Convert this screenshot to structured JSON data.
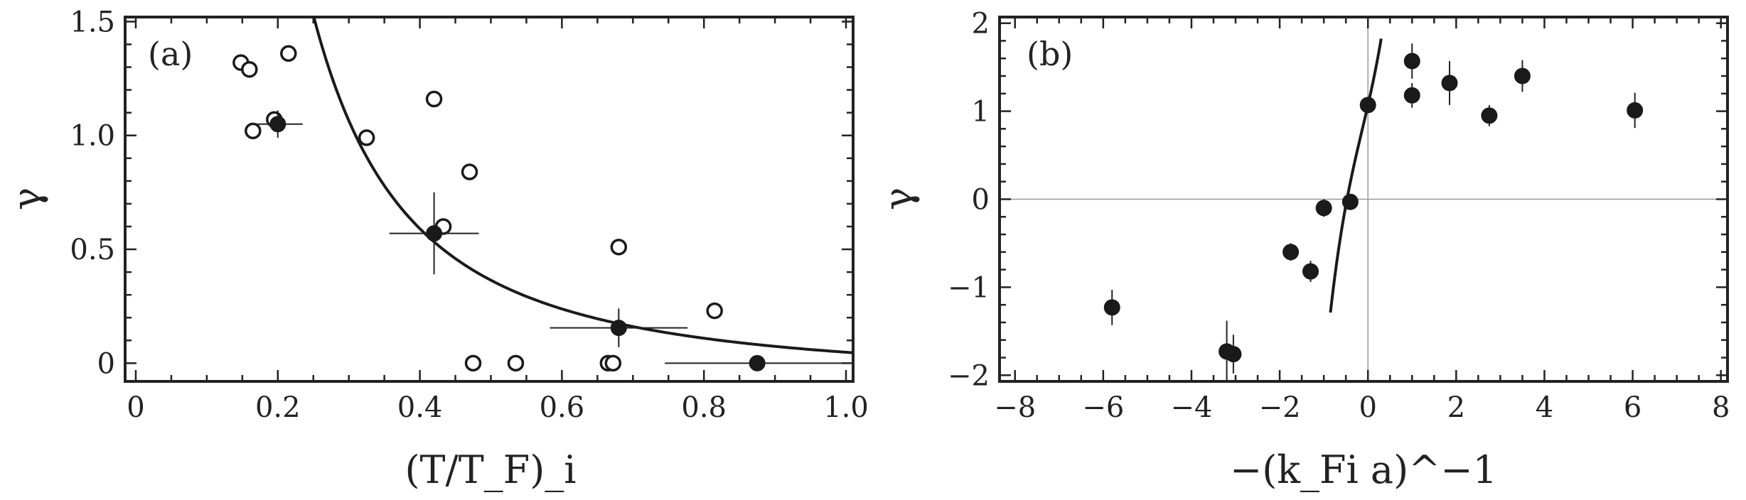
{
  "chart_data": [
    {
      "type": "scatter",
      "panel_label": "(a)",
      "xlabel": "(T/T_F)_i",
      "ylabel": "γ",
      "xlim": [
        -0.015,
        1.01
      ],
      "ylim": [
        -0.08,
        1.52
      ],
      "xticks": [
        0,
        0.2,
        0.4,
        0.6,
        0.8,
        1.0
      ],
      "xtick_labels": [
        "0",
        "0.2",
        "0.4",
        "0.6",
        "0.8",
        "1.0"
      ],
      "yticks": [
        0,
        0.5,
        1.0,
        1.5
      ],
      "ytick_labels": [
        "0",
        "0.5",
        "1.0",
        "1.5"
      ],
      "grid": false,
      "series": [
        {
          "marker": "open-circle",
          "points": [
            {
              "x": 0.148,
              "y": 1.32
            },
            {
              "x": 0.16,
              "y": 1.29
            },
            {
              "x": 0.215,
              "y": 1.36
            },
            {
              "x": 0.165,
              "y": 1.02
            },
            {
              "x": 0.195,
              "y": 1.07
            },
            {
              "x": 0.325,
              "y": 0.99
            },
            {
              "x": 0.42,
              "y": 1.16
            },
            {
              "x": 0.47,
              "y": 0.84
            },
            {
              "x": 0.433,
              "y": 0.6
            },
            {
              "x": 0.68,
              "y": 0.51
            },
            {
              "x": 0.815,
              "y": 0.23
            },
            {
              "x": 0.475,
              "y": 0.0
            },
            {
              "x": 0.535,
              "y": 0.0
            },
            {
              "x": 0.665,
              "y": 0.0
            },
            {
              "x": 0.672,
              "y": 0.0
            }
          ]
        },
        {
          "marker": "filled-circle",
          "points": [
            {
              "x": 0.2,
              "y": 1.05,
              "xerr": 0.035,
              "yerr": 0.06
            },
            {
              "x": 0.42,
              "y": 0.57,
              "xerr": 0.063,
              "yerr": 0.18
            },
            {
              "x": 0.68,
              "y": 0.155,
              "xerr": 0.097,
              "yerr": 0.085
            },
            {
              "x": 0.875,
              "y": 0.0,
              "xerr": 0.13,
              "yerr": 0.03
            }
          ]
        }
      ],
      "curve": {
        "formula": "gamma = 0.118 * (T/TF)^-1.88 - 0.07",
        "x_start": 0.1,
        "x_end": 1.01
      }
    },
    {
      "type": "scatter",
      "panel_label": "(b)",
      "xlabel": "−(k_Fi a)^−1",
      "ylabel": "γ",
      "xlim": [
        -8.35,
        8.15
      ],
      "ylim": [
        -2.07,
        2.07
      ],
      "xticks": [
        -8,
        -6,
        -4,
        -2,
        0,
        2,
        4,
        6,
        8
      ],
      "xtick_labels": [
        "−8",
        "−6",
        "−4",
        "−2",
        "0",
        "2",
        "4",
        "6",
        "8"
      ],
      "yticks": [
        -2,
        -1,
        0,
        1,
        2
      ],
      "ytick_labels": [
        "−2",
        "−1",
        "0",
        "1",
        "2"
      ],
      "grid": false,
      "reference_lines": {
        "x": 0,
        "y": 0
      },
      "series": [
        {
          "marker": "filled-circle",
          "points": [
            {
              "x": -5.8,
              "y": -1.23,
              "yerr": 0.2
            },
            {
              "x": -3.2,
              "y": -1.73,
              "yerr": 0.35
            },
            {
              "x": -3.05,
              "y": -1.76,
              "yerr": 0.22
            },
            {
              "x": -1.75,
              "y": -0.6,
              "yerr": 0.1
            },
            {
              "x": -1.3,
              "y": -0.82,
              "yerr": 0.12
            },
            {
              "x": -1.0,
              "y": -0.1,
              "yerr": 0.1
            },
            {
              "x": -0.4,
              "y": -0.03,
              "yerr": 0.08
            },
            {
              "x": 0.0,
              "y": 1.07,
              "yerr": 0.08
            },
            {
              "x": 1.0,
              "y": 1.57,
              "yerr": 0.2
            },
            {
              "x": 1.0,
              "y": 1.18,
              "yerr": 0.14
            },
            {
              "x": 1.85,
              "y": 1.32,
              "yerr": 0.25
            },
            {
              "x": 2.75,
              "y": 0.95,
              "yerr": 0.12
            },
            {
              "x": 3.5,
              "y": 1.4,
              "yerr": 0.18
            },
            {
              "x": 6.05,
              "y": 1.01,
              "yerr": 0.2
            }
          ]
        }
      ],
      "curve": {
        "formula": "gamma = 1.07 + 2.2x + 0.6x^2 + 1.5x^3",
        "x_start": -0.85,
        "x_end": 0.3
      }
    }
  ]
}
